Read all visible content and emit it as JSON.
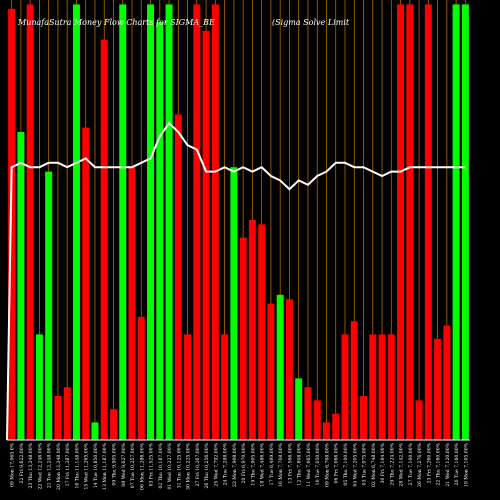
{
  "chart_data": {
    "type": "bar",
    "title": "MunafaSutra  Money Flow  Charts for SIGMA_BE",
    "title_right": "(Sigma  Solve   Limit",
    "colors": {
      "background": "#000000",
      "up": "#00ff00",
      "down": "#ff0000",
      "line": "#ffffff",
      "grid": "#b26b00",
      "axis": "#ffffff"
    },
    "grid": true,
    "bar_scale": [
      0,
      100
    ],
    "line_scale": [
      0,
      100
    ],
    "categories": [
      "09 Mon 17,065.0%",
      "22 Fri 9,622.00%",
      "23 Thu 13,248.00%",
      "22 Wed 12,246.00%",
      "21 Tue 12,248.00%",
      "20 Mon 12,248.00%",
      "17 Fri 11,287.00%",
      "16 Thu 11,148.00%",
      "15 Wed 11,265.00%",
      "14 Tue 10,850.00%",
      "13 Mon 11,187.00%",
      "09 Thu 9,905.00%",
      "08 Wed 9,627.00%",
      "07 Tue 10,257.00%",
      "06 Mon 11,286.00%",
      "03 Fri 11,525.00%",
      "02 Thu 10,187.00%",
      "01 Wed 10,227.00%",
      "31 Tue 10,125.00%",
      "30 Mon 10,225.00%",
      "27 Fri 10,267.00%",
      "26 Thu 10,256.00%",
      "25 Wed 7,792.00%",
      "24 Tue 7,288.00%",
      "23 Mon 7,908.00%",
      "20 Fri 6,970.00%",
      "19 Thu 7,905.00%",
      "18 Wed 7,486.00%",
      "17 Tue 6,489.00%",
      "16 Mon 7,708.00%",
      "13 Fri 7,566.00%",
      "12 Thu 7,808.00%",
      "11 Wed 7,065.00%",
      "10 Tue 7,050.00%",
      "09 Mon 6,768.00%",
      "06 Fri 7,066.00%",
      "05 Thu 7,100.00%",
      "04 Wed 7,205.00%",
      "03 Tue 7,075.00%",
      "02 Mon 6,748.00%",
      "30 Fri 7,184.00%",
      "29 Thu 7,224.00%",
      "28 Wed 7,142.00%",
      "27 Tue 7,100.00%",
      "26 Mon 7,276.00%",
      "23 Fri 7,260.00%",
      "22 Thu 7,160.00%",
      "21 Wed 7,120.00%",
      "20 Tue 7,160.00%",
      "19 Mon 7,105.00%"
    ],
    "series": [
      {
        "values": [
          98,
          70,
          99,
          24,
          61,
          10,
          12,
          99,
          71,
          4,
          91,
          7,
          99,
          62,
          28,
          99,
          95,
          99,
          74,
          24,
          99,
          93,
          99,
          24,
          62,
          46,
          50,
          49,
          31,
          33,
          32,
          14,
          12,
          9,
          4,
          6,
          24,
          27,
          10,
          24,
          24,
          24,
          99,
          99,
          9,
          99,
          23,
          26,
          99,
          99
        ],
        "colors": [
          "down",
          "up",
          "down",
          "up",
          "up",
          "down",
          "down",
          "up",
          "down",
          "up",
          "down",
          "down",
          "up",
          "down",
          "down",
          "up",
          "up",
          "up",
          "down",
          "down",
          "down",
          "down",
          "down",
          "down",
          "up",
          "down",
          "down",
          "down",
          "down",
          "up",
          "down",
          "up",
          "down",
          "down",
          "down",
          "down",
          "down",
          "down",
          "down",
          "down",
          "down",
          "down",
          "down",
          "down",
          "down",
          "down",
          "down",
          "down",
          "up",
          "up"
        ]
      },
      {
        "values": [
          62,
          63,
          62,
          62,
          63,
          63,
          62,
          63,
          64,
          62,
          62,
          62,
          62,
          62,
          63,
          64,
          69,
          72,
          70,
          67,
          66,
          61,
          61,
          62,
          61,
          62,
          61,
          62,
          60,
          59,
          57,
          59,
          58,
          60,
          61,
          63,
          63,
          62,
          62,
          61,
          60,
          61,
          61,
          62,
          62,
          62,
          62,
          62,
          62,
          62
        ]
      }
    ]
  }
}
